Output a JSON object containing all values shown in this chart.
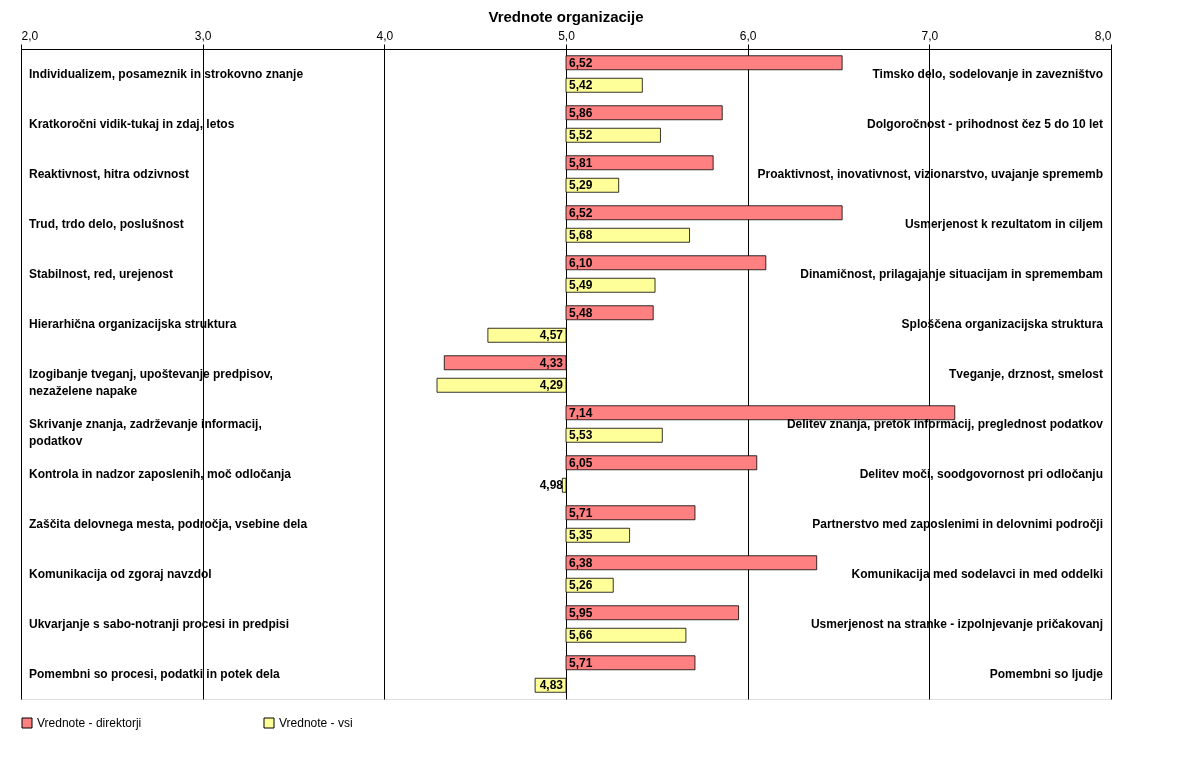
{
  "chart_data": {
    "type": "bar",
    "orientation": "horizontal",
    "title": "Vrednote organizacije",
    "categories": [
      "Individualizem, posameznik in strokovno znanje",
      "Kratkoročni vidik-tukaj in zdaj, letos",
      "Reaktivnost, hitra odzivnost",
      "Trud, trdo delo, poslušnost",
      "Stabilnost, red, urejenost",
      "Hierarhična organizacijska struktura",
      "Izogibanje tveganj, upoštevanje predpisov, nezaželene napake",
      "Skrivanje znanja, zadrževanje informacij, podatkov",
      "Kontrola in nadzor zaposlenih, moč odločanja",
      "Zaščita delovnega mesta, področja, vsebine dela",
      "Komunikacija od zgoraj navzdol",
      "Ukvarjanje s sabo-notranji procesi in predpisi",
      "Pomembni so procesi, podatki in potek dela"
    ],
    "y2_categories": [
      "Timsko delo, sodelovanje in zavezništvo",
      "Dolgoročnost - prihodnost čez 5 do 10 let",
      "Proaktivnost, inovativnost, vizionarstvo, uvajanje sprememb",
      "Usmerjenost k rezultatom in ciljem",
      "Dinamičnost, prilagajanje situacijam in spremembam",
      "Sploščena organizacijska struktura",
      "Tveganje, drznost, smelost",
      "Delitev znanja, pretok informacij, preglednost podatkov",
      "Delitev moči, soodgovornost pri odločanju",
      "Partnerstvo med zaposlenimi in delovnimi področji",
      "Komunikacija med sodelavci in med oddelki",
      "Usmerjenost na stranke - izpolnjevanje pričakovanj",
      "Pomembni so ljudje"
    ],
    "series": [
      {
        "name": "Vrednote - direktorji",
        "color": "#ff8080",
        "base": [
          5,
          5,
          5,
          5,
          5,
          5,
          5,
          5,
          5,
          5,
          5,
          5,
          5
        ],
        "values": [
          1.52,
          0.86,
          0.81,
          1.52,
          1.1,
          0.48,
          -0.67,
          2.14,
          1.05,
          0.71,
          1.38,
          0.95,
          0.71
        ],
        "value_labels": [
          "6,52",
          "5,86",
          "5,81",
          "6,52",
          "6,10",
          "5,48",
          "4,33",
          "7,14",
          "6,05",
          "5,71",
          "6,38",
          "5,95",
          "5,71"
        ]
      },
      {
        "name": "Vrednote - vsi",
        "color": "#ffff99",
        "base": [
          5,
          5,
          5,
          5,
          5,
          5,
          5,
          5,
          5,
          5,
          5,
          5,
          5
        ],
        "values": [
          0.42,
          0.52,
          0.29,
          0.68,
          0.49,
          -0.43,
          -0.71,
          0.53,
          -0.02,
          0.35,
          0.26,
          0.66,
          -0.17
        ],
        "value_labels": [
          "5,42",
          "5,52",
          "5,29",
          "5,68",
          "5,49",
          "4,57",
          "4,29",
          "5,53",
          "4,98",
          "5,35",
          "5,26",
          "5,66",
          "4,83"
        ]
      }
    ],
    "xlim": [
      2,
      8
    ],
    "xticks": [
      {
        "value": 2,
        "label": "2,0"
      },
      {
        "value": 3,
        "label": "3,0"
      },
      {
        "value": 4,
        "label": "4,0"
      },
      {
        "value": 5,
        "label": "5,0"
      },
      {
        "value": 6,
        "label": "6,0"
      },
      {
        "value": 7,
        "label": "7,0"
      },
      {
        "value": 8,
        "label": "8,0"
      }
    ],
    "grid": "x",
    "legend": "bottom"
  }
}
